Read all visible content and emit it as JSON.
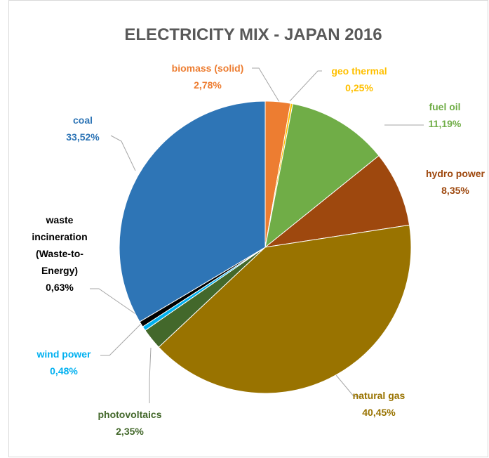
{
  "chart_data": {
    "type": "pie",
    "title": "ELECTRICITY MIX - JAPAN 2016",
    "slices": [
      {
        "name": "biomass (solid)",
        "value": 2.78,
        "value_label": "2,78%",
        "color": "#ED7D31"
      },
      {
        "name": "geo thermal",
        "value": 0.25,
        "value_label": "0,25%",
        "color": "#FFC000"
      },
      {
        "name": "fuel oil",
        "value": 11.19,
        "value_label": "11,19%",
        "color": "#70AD47"
      },
      {
        "name": "hydro power",
        "value": 8.35,
        "value_label": "8,35%",
        "color": "#9E480E"
      },
      {
        "name": "natural gas",
        "value": 40.45,
        "value_label": "40,45%",
        "color": "#997300"
      },
      {
        "name": "photovoltaics",
        "value": 2.35,
        "value_label": "2,35%",
        "color": "#43682B"
      },
      {
        "name": "wind power",
        "value": 0.48,
        "value_label": "0,48%",
        "color": "#00B0F0"
      },
      {
        "name": "waste incineration (Waste-to-Energy)",
        "value": 0.63,
        "value_label": "0,63%",
        "color": "#000000"
      },
      {
        "name": "coal",
        "value": 33.52,
        "value_label": "33,52%",
        "color": "#2E75B6"
      }
    ]
  }
}
